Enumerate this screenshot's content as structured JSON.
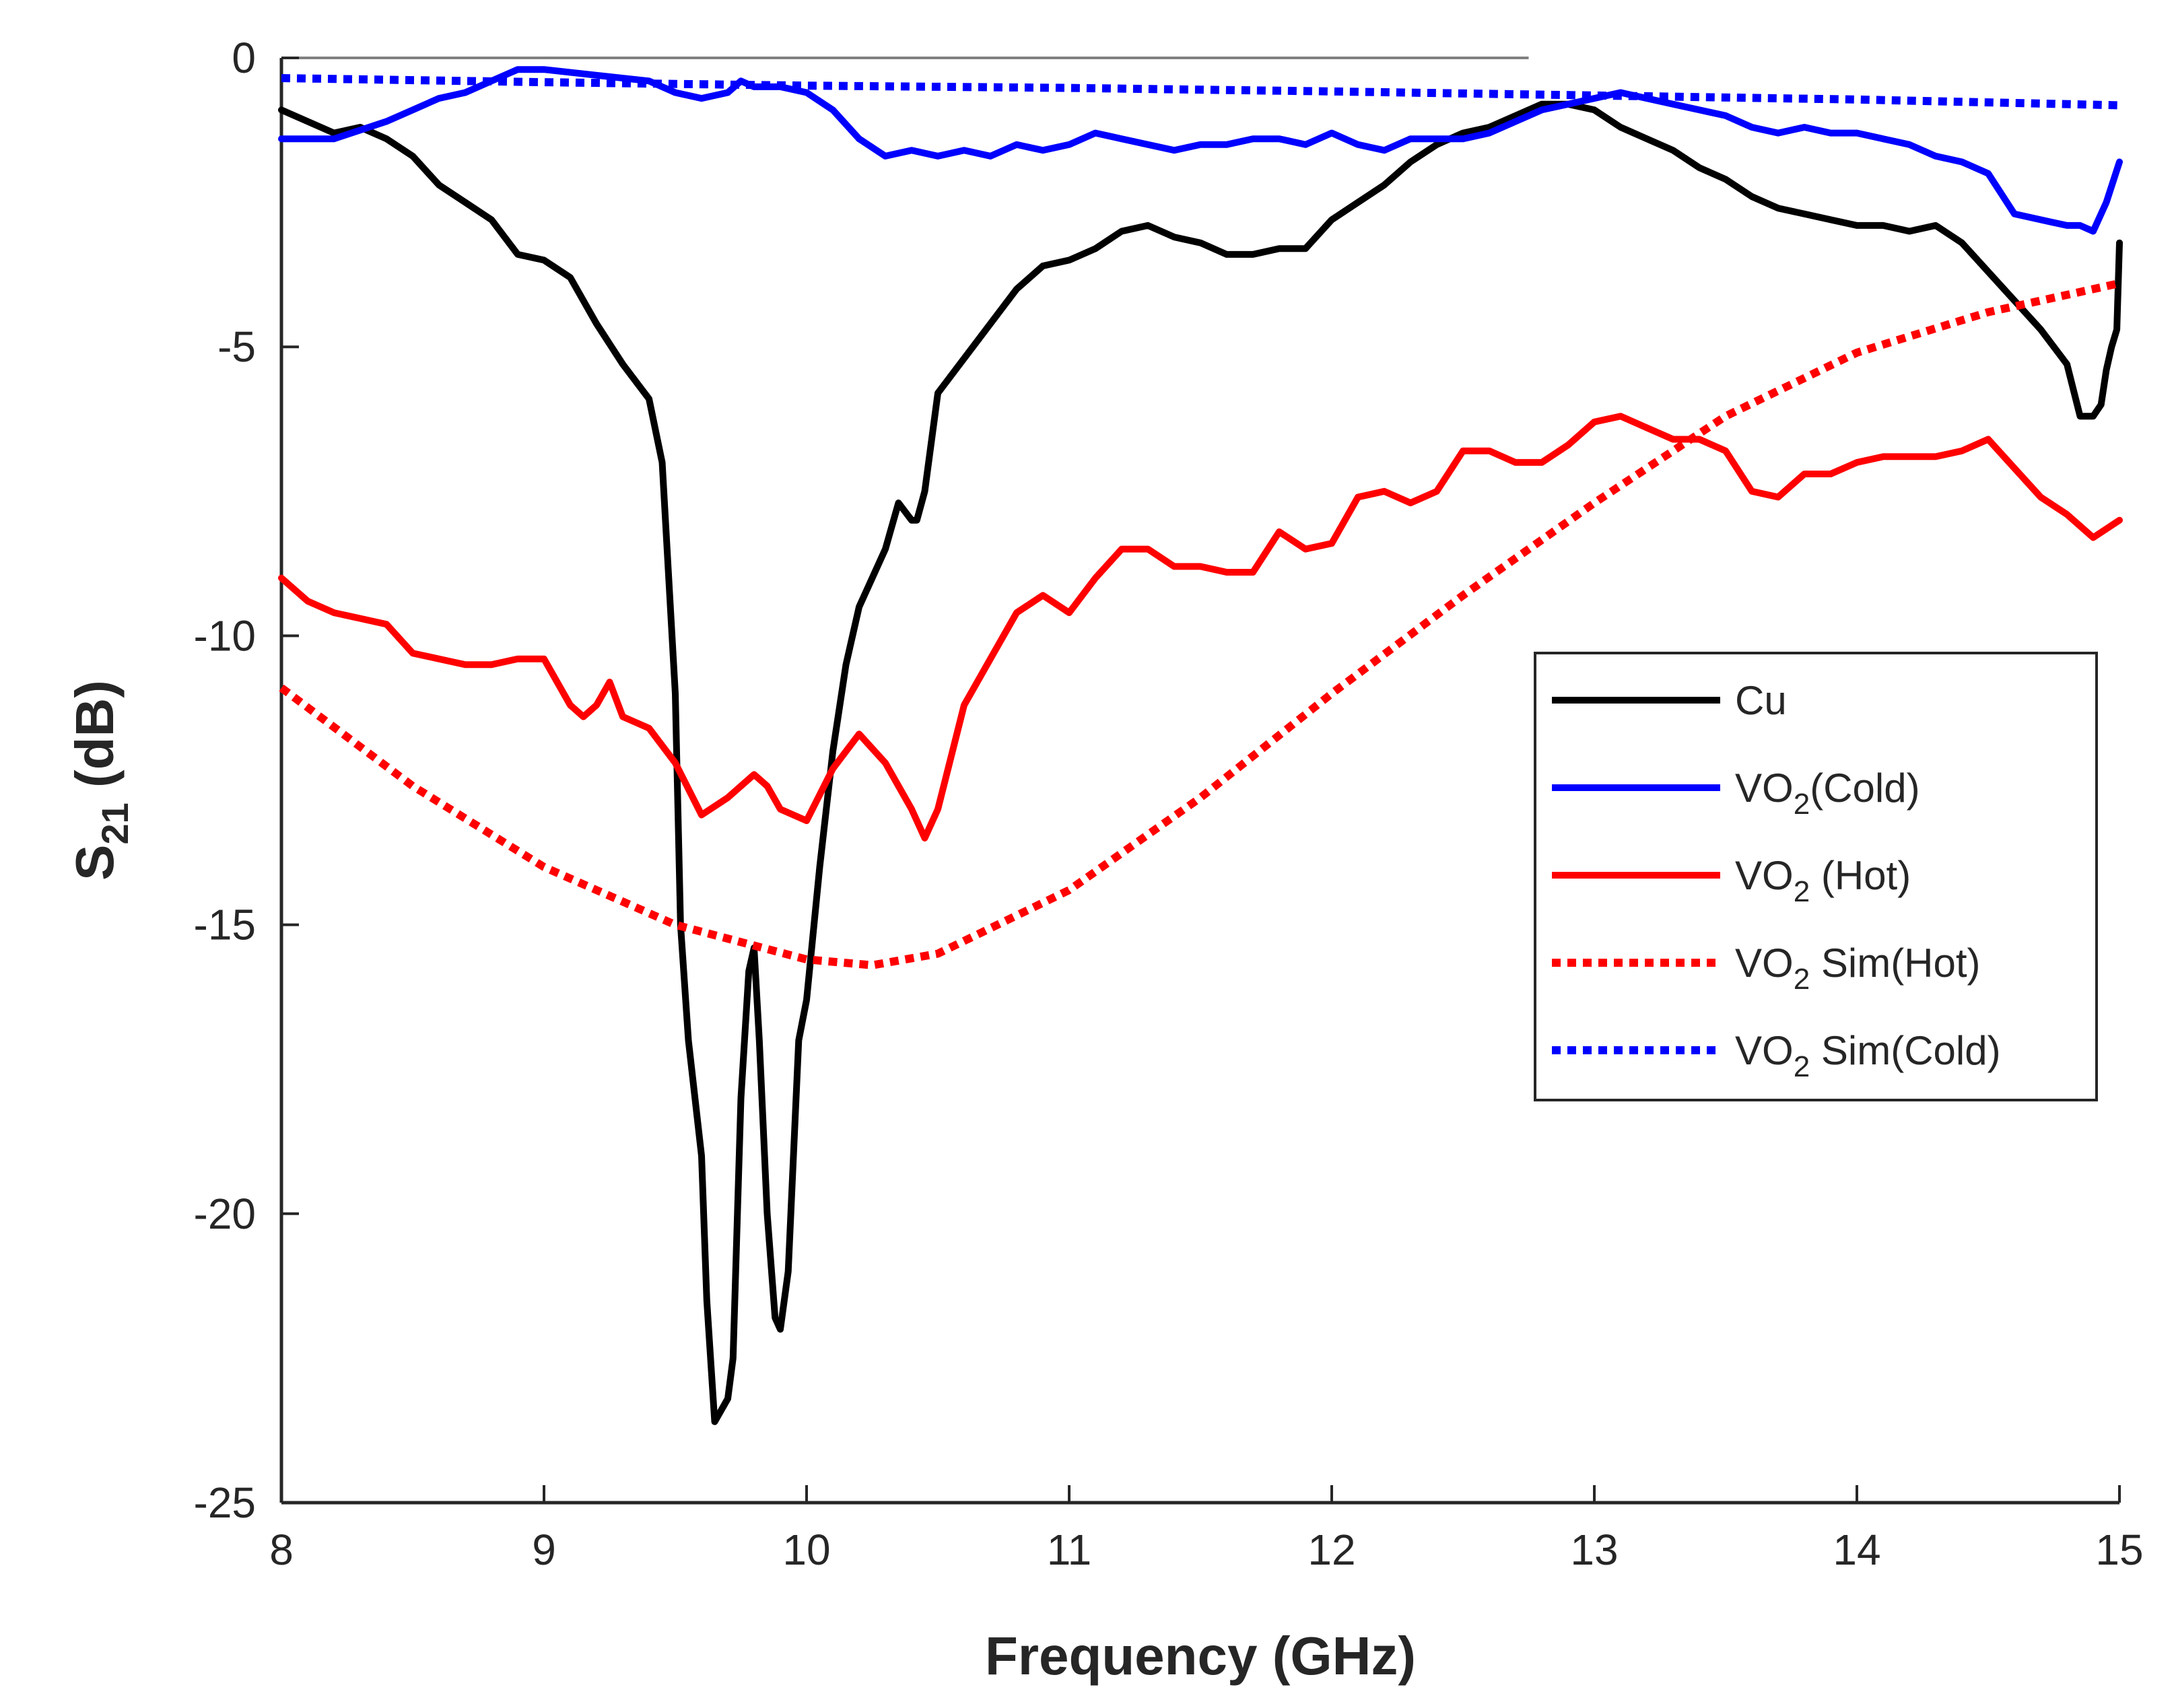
{
  "chart_data": {
    "type": "line",
    "xlabel": "Frequency (GHz)",
    "ylabel": {
      "main": "S",
      "sub": "21",
      "suffix": " (dB)"
    },
    "xlim": [
      8,
      15
    ],
    "ylim": [
      -25,
      0
    ],
    "xticks": [
      8,
      9,
      10,
      11,
      12,
      13,
      14,
      15
    ],
    "yticks": [
      0,
      -5,
      -10,
      -15,
      -20,
      -25
    ],
    "reference_line": {
      "y": 0,
      "x_end": 12.75,
      "color": "#808080"
    },
    "legend": {
      "position": "right"
    },
    "series": [
      {
        "name": "Cu",
        "label": {
          "main": "Cu",
          "sub": "",
          "rest": ""
        },
        "color": "#000000",
        "dash": "solid",
        "x": [
          8.0,
          8.1,
          8.2,
          8.3,
          8.4,
          8.5,
          8.6,
          8.7,
          8.8,
          8.9,
          9.0,
          9.1,
          9.2,
          9.3,
          9.4,
          9.45,
          9.5,
          9.52,
          9.55,
          9.6,
          9.62,
          9.65,
          9.7,
          9.72,
          9.75,
          9.78,
          9.8,
          9.82,
          9.85,
          9.88,
          9.9,
          9.93,
          9.95,
          9.97,
          10.0,
          10.05,
          10.1,
          10.15,
          10.2,
          10.3,
          10.35,
          10.4,
          10.42,
          10.45,
          10.5,
          10.55,
          10.6,
          10.7,
          10.8,
          10.9,
          11.0,
          11.1,
          11.2,
          11.3,
          11.4,
          11.5,
          11.6,
          11.7,
          11.8,
          11.9,
          12.0,
          12.1,
          12.2,
          12.3,
          12.4,
          12.5,
          12.6,
          12.7,
          12.8,
          12.9,
          13.0,
          13.1,
          13.2,
          13.3,
          13.4,
          13.5,
          13.6,
          13.7,
          13.8,
          13.9,
          14.0,
          14.1,
          14.2,
          14.3,
          14.4,
          14.5,
          14.6,
          14.7,
          14.8,
          14.85,
          14.9,
          14.93,
          14.95,
          14.97,
          14.99,
          15.0
        ],
        "y": [
          -0.9,
          -1.1,
          -1.3,
          -1.2,
          -1.4,
          -1.7,
          -2.2,
          -2.5,
          -2.8,
          -3.4,
          -3.5,
          -3.8,
          -4.6,
          -5.3,
          -5.9,
          -7.0,
          -11.0,
          -15.0,
          -17.0,
          -19.0,
          -21.5,
          -23.6,
          -23.2,
          -22.5,
          -18.0,
          -15.8,
          -15.4,
          -17.0,
          -20.0,
          -21.8,
          -22.0,
          -21.0,
          -19.0,
          -17.0,
          -16.3,
          -14.0,
          -12.0,
          -10.5,
          -9.5,
          -8.5,
          -7.7,
          -8.0,
          -8.0,
          -7.5,
          -5.8,
          -5.5,
          -5.2,
          -4.6,
          -4.0,
          -3.6,
          -3.5,
          -3.3,
          -3.0,
          -2.9,
          -3.1,
          -3.2,
          -3.4,
          -3.4,
          -3.3,
          -3.3,
          -2.8,
          -2.5,
          -2.2,
          -1.8,
          -1.5,
          -1.3,
          -1.2,
          -1.0,
          -0.8,
          -0.8,
          -0.9,
          -1.2,
          -1.4,
          -1.6,
          -1.9,
          -2.1,
          -2.4,
          -2.6,
          -2.7,
          -2.8,
          -2.9,
          -2.9,
          -3.0,
          -2.9,
          -3.2,
          -3.7,
          -4.2,
          -4.7,
          -5.3,
          -6.2,
          -6.2,
          -6.0,
          -5.4,
          -5.0,
          -4.7,
          -3.2
        ]
      },
      {
        "name": "VO2(Cold)",
        "label": {
          "main": "VO",
          "sub": "2",
          "rest": "(Cold)"
        },
        "color": "#0000ff",
        "dash": "solid",
        "x": [
          8.0,
          8.2,
          8.4,
          8.5,
          8.6,
          8.7,
          8.8,
          8.9,
          9.0,
          9.2,
          9.4,
          9.5,
          9.6,
          9.7,
          9.75,
          9.8,
          9.9,
          10.0,
          10.1,
          10.2,
          10.3,
          10.4,
          10.5,
          10.6,
          10.7,
          10.8,
          10.9,
          11.0,
          11.1,
          11.2,
          11.3,
          11.4,
          11.5,
          11.6,
          11.7,
          11.8,
          11.9,
          12.0,
          12.1,
          12.2,
          12.3,
          12.4,
          12.5,
          12.6,
          12.7,
          12.8,
          12.9,
          13.0,
          13.1,
          13.2,
          13.3,
          13.4,
          13.5,
          13.6,
          13.7,
          13.8,
          13.9,
          14.0,
          14.1,
          14.2,
          14.3,
          14.4,
          14.5,
          14.6,
          14.7,
          14.8,
          14.85,
          14.9,
          14.95,
          15.0
        ],
        "y": [
          -1.4,
          -1.4,
          -1.1,
          -0.9,
          -0.7,
          -0.6,
          -0.4,
          -0.2,
          -0.2,
          -0.3,
          -0.4,
          -0.6,
          -0.7,
          -0.6,
          -0.4,
          -0.5,
          -0.5,
          -0.6,
          -0.9,
          -1.4,
          -1.7,
          -1.6,
          -1.7,
          -1.6,
          -1.7,
          -1.5,
          -1.6,
          -1.5,
          -1.3,
          -1.4,
          -1.5,
          -1.6,
          -1.5,
          -1.5,
          -1.4,
          -1.4,
          -1.5,
          -1.3,
          -1.5,
          -1.6,
          -1.4,
          -1.4,
          -1.4,
          -1.3,
          -1.1,
          -0.9,
          -0.8,
          -0.7,
          -0.6,
          -0.7,
          -0.8,
          -0.9,
          -1.0,
          -1.2,
          -1.3,
          -1.2,
          -1.3,
          -1.3,
          -1.4,
          -1.5,
          -1.7,
          -1.8,
          -2.0,
          -2.7,
          -2.8,
          -2.9,
          -2.9,
          -3.0,
          -2.5,
          -1.8
        ]
      },
      {
        "name": "VO2 (Hot)",
        "label": {
          "main": "VO",
          "sub": "2",
          "rest": " (Hot)"
        },
        "color": "#ff0000",
        "dash": "solid",
        "x": [
          8.0,
          8.1,
          8.2,
          8.3,
          8.4,
          8.5,
          8.6,
          8.7,
          8.8,
          8.9,
          9.0,
          9.1,
          9.15,
          9.2,
          9.25,
          9.3,
          9.4,
          9.5,
          9.6,
          9.7,
          9.8,
          9.85,
          9.9,
          10.0,
          10.1,
          10.2,
          10.3,
          10.4,
          10.45,
          10.5,
          10.6,
          10.7,
          10.8,
          10.9,
          11.0,
          11.1,
          11.2,
          11.3,
          11.4,
          11.5,
          11.6,
          11.7,
          11.8,
          11.9,
          12.0,
          12.1,
          12.2,
          12.3,
          12.4,
          12.5,
          12.6,
          12.7,
          12.8,
          12.9,
          13.0,
          13.1,
          13.2,
          13.3,
          13.4,
          13.5,
          13.6,
          13.7,
          13.8,
          13.9,
          14.0,
          14.1,
          14.2,
          14.3,
          14.4,
          14.5,
          14.6,
          14.7,
          14.8,
          14.9,
          15.0
        ],
        "y": [
          -9.0,
          -9.4,
          -9.6,
          -9.7,
          -9.8,
          -10.3,
          -10.4,
          -10.5,
          -10.5,
          -10.4,
          -10.4,
          -11.2,
          -11.4,
          -11.2,
          -10.8,
          -11.4,
          -11.6,
          -12.2,
          -13.1,
          -12.8,
          -12.4,
          -12.6,
          -13.0,
          -13.2,
          -12.3,
          -11.7,
          -12.2,
          -13.0,
          -13.5,
          -13.0,
          -11.2,
          -10.4,
          -9.6,
          -9.3,
          -9.6,
          -9.0,
          -8.5,
          -8.5,
          -8.8,
          -8.8,
          -8.9,
          -8.9,
          -8.2,
          -8.5,
          -8.4,
          -7.6,
          -7.5,
          -7.7,
          -7.5,
          -6.8,
          -6.8,
          -7.0,
          -7.0,
          -6.7,
          -6.3,
          -6.2,
          -6.4,
          -6.6,
          -6.6,
          -6.8,
          -7.5,
          -7.6,
          -7.2,
          -7.2,
          -7.0,
          -6.9,
          -6.9,
          -6.9,
          -6.8,
          -6.6,
          -7.1,
          -7.6,
          -7.9,
          -8.3,
          -8.0
        ]
      },
      {
        "name": "VO2 Sim(Hot)",
        "label": {
          "main": "VO",
          "sub": "2",
          "rest": " Sim(Hot)"
        },
        "color": "#ff0000",
        "dash": "dotted",
        "x": [
          8.0,
          8.5,
          9.0,
          9.5,
          10.0,
          10.25,
          10.5,
          11.0,
          11.5,
          12.0,
          12.5,
          13.0,
          13.5,
          14.0,
          14.5,
          15.0
        ],
        "y": [
          -10.9,
          -12.6,
          -14.0,
          -15.0,
          -15.6,
          -15.7,
          -15.5,
          -14.4,
          -12.8,
          -11.0,
          -9.3,
          -7.7,
          -6.2,
          -5.1,
          -4.4,
          -3.9
        ]
      },
      {
        "name": "VO2 Sim(Cold)",
        "label": {
          "main": "VO",
          "sub": "2",
          "rest": " Sim(Cold)"
        },
        "color": "#0000ff",
        "dash": "dotted",
        "x": [
          8.0,
          9.0,
          10.0,
          11.0,
          12.0,
          13.0,
          14.0,
          15.0
        ],
        "y": [
          -0.35,
          -0.42,
          -0.48,
          -0.52,
          -0.58,
          -0.65,
          -0.72,
          -0.82
        ]
      }
    ]
  }
}
